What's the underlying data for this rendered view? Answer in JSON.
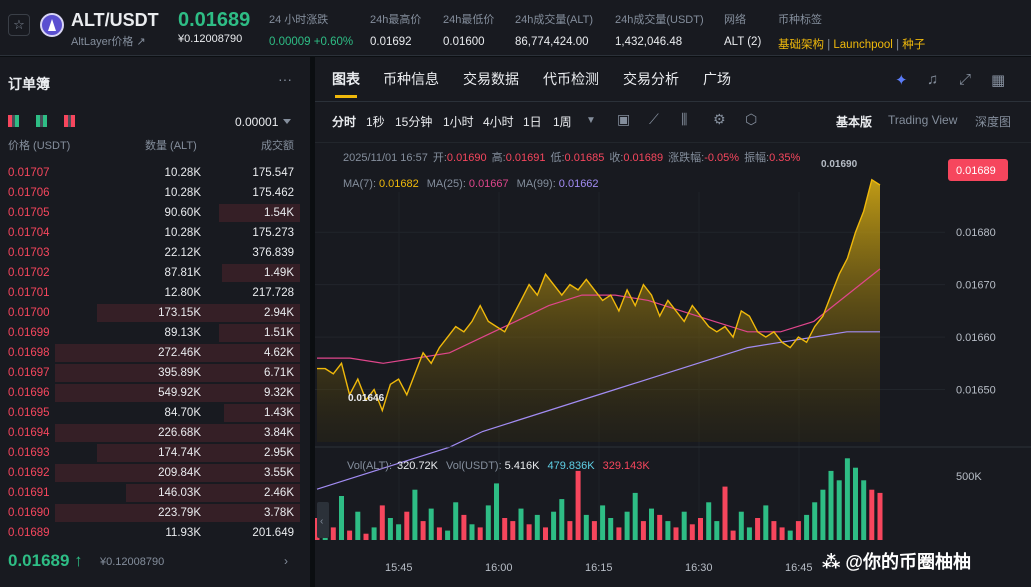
{
  "header": {
    "pair": "ALT/USDT",
    "name": "AltLayer价格 ↗",
    "price": "0.01689",
    "price_usd": "¥0.12008790",
    "stats": [
      {
        "label": "24 小时涨跌",
        "value": "0.00009 +0.60%",
        "color": "#2ebd85"
      },
      {
        "label": "24h最高价",
        "value": "0.01692"
      },
      {
        "label": "24h最低价",
        "value": "0.01600"
      },
      {
        "label": "24h成交量(ALT)",
        "value": "86,774,424.00"
      },
      {
        "label": "24h成交量(USDT)",
        "value": "1,432,046.48"
      },
      {
        "label": "网络",
        "value": "ALT (2)"
      }
    ],
    "tags_label": "币种标签",
    "tags": [
      "基础架构",
      "Launchpool",
      "种子"
    ]
  },
  "orderbook": {
    "title": "订单簿",
    "tick": "0.00001",
    "columns": [
      "价格 (USDT)",
      "数量 (ALT)",
      "成交额"
    ],
    "rows": [
      {
        "price": "0.01707",
        "qty": "10.28K",
        "total": "175.547",
        "depth": 0.0
      },
      {
        "price": "0.01706",
        "qty": "10.28K",
        "total": "175.462",
        "depth": 0.0
      },
      {
        "price": "0.01705",
        "qty": "90.60K",
        "total": "1.54K",
        "depth": 0.33
      },
      {
        "price": "0.01704",
        "qty": "10.28K",
        "total": "175.273",
        "depth": 0.0
      },
      {
        "price": "0.01703",
        "qty": "22.12K",
        "total": "376.839",
        "depth": 0.0
      },
      {
        "price": "0.01702",
        "qty": "87.81K",
        "total": "1.49K",
        "depth": 0.32
      },
      {
        "price": "0.01701",
        "qty": "12.80K",
        "total": "217.728",
        "depth": 0.0
      },
      {
        "price": "0.01700",
        "qty": "173.15K",
        "total": "2.94K",
        "depth": 0.83
      },
      {
        "price": "0.01699",
        "qty": "89.13K",
        "total": "1.51K",
        "depth": 0.33
      },
      {
        "price": "0.01698",
        "qty": "272.46K",
        "total": "4.62K",
        "depth": 1.0
      },
      {
        "price": "0.01697",
        "qty": "395.89K",
        "total": "6.71K",
        "depth": 1.0
      },
      {
        "price": "0.01696",
        "qty": "549.92K",
        "total": "9.32K",
        "depth": 1.0
      },
      {
        "price": "0.01695",
        "qty": "84.70K",
        "total": "1.43K",
        "depth": 0.31
      },
      {
        "price": "0.01694",
        "qty": "226.68K",
        "total": "3.84K",
        "depth": 1.0
      },
      {
        "price": "0.01693",
        "qty": "174.74K",
        "total": "2.95K",
        "depth": 0.83
      },
      {
        "price": "0.01692",
        "qty": "209.84K",
        "total": "3.55K",
        "depth": 1.0
      },
      {
        "price": "0.01691",
        "qty": "146.03K",
        "total": "2.46K",
        "depth": 0.71
      },
      {
        "price": "0.01690",
        "qty": "223.79K",
        "total": "3.78K",
        "depth": 1.0
      },
      {
        "price": "0.01689",
        "qty": "11.93K",
        "total": "201.649",
        "depth": 0.0
      }
    ],
    "last_price": "0.01689 ↑",
    "last_usd": "¥0.12008790"
  },
  "tabs": [
    "图表",
    "币种信息",
    "交易数据",
    "代币检测",
    "交易分析",
    "广场"
  ],
  "toolbar": {
    "intervals": [
      "分时",
      "1秒",
      "15分钟",
      "1小时",
      "4小时",
      "1日",
      "1周"
    ],
    "modes": [
      "基本版",
      "Trading View",
      "深度图"
    ]
  },
  "chart_info": {
    "date": "2025/11/01 16:57",
    "open_label": "开:",
    "open": "0.01690",
    "high_label": "高:",
    "high": "0.01691",
    "low_label": "低:",
    "low": "0.01685",
    "close_label": "收:",
    "close": "0.01689",
    "change_label": "涨跌幅:",
    "change": "-0.05%",
    "amp_label": "振幅:",
    "amp": "0.35%",
    "ma7_label": "MA(7):",
    "ma7": "0.01682",
    "ma25_label": "MA(25):",
    "ma25": "0.01667",
    "ma99_label": "MA(99):",
    "ma99": "0.01662",
    "vol_alt_label": "Vol(ALT):",
    "vol_alt": "320.72K",
    "vol_usdt_label": "Vol(USDT):",
    "vol_usdt": "5.416K",
    "vol_a": "479.836K",
    "vol_b": "329.143K",
    "low_mark": "0.01646",
    "high_mark": "0.01690",
    "current_tag": "0.01689"
  },
  "chart_data": {
    "type": "area",
    "x_ticks": [
      "15:45",
      "16:00",
      "16:15",
      "16:30",
      "16:45"
    ],
    "y_ticks": [
      "0.01680",
      "0.01670",
      "0.01660",
      "0.01650"
    ],
    "vol_tick": "500K",
    "ylim": [
      0.0164,
      0.01693
    ],
    "price": [
      0.01654,
      0.01654,
      0.01653,
      0.01655,
      0.01649,
      0.01652,
      0.01648,
      0.0165,
      0.01646,
      0.01651,
      0.01652,
      0.01649,
      0.01653,
      0.01657,
      0.01655,
      0.01658,
      0.0166,
      0.01662,
      0.01661,
      0.01663,
      0.01666,
      0.01663,
      0.01662,
      0.01661,
      0.01664,
      0.01667,
      0.0167,
      0.01668,
      0.01672,
      0.0167,
      0.01668,
      0.0167,
      0.01669,
      0.01671,
      0.01669,
      0.01667,
      0.01668,
      0.01665,
      0.01669,
      0.01666,
      0.0167,
      0.01668,
      0.01664,
      0.01667,
      0.01665,
      0.01663,
      0.01666,
      0.01664,
      0.01662,
      0.01661,
      0.01662,
      0.0166,
      0.01665,
      0.01664,
      0.01661,
      0.0166,
      0.01661,
      0.01659,
      0.01658,
      0.0166,
      0.01659,
      0.01662,
      0.01664,
      0.01668,
      0.01672,
      0.01675,
      0.0168,
      0.01684,
      0.0169,
      0.01689
    ],
    "ma99": [
      0.01631,
      0.01633,
      0.01635,
      0.01637,
      0.01639,
      0.01642,
      0.01644,
      0.01646,
      0.01648,
      0.0165,
      0.01652,
      0.01654,
      0.01656,
      0.01658,
      0.01659,
      0.0166,
      0.01661,
      0.01661
    ],
    "ma25": [
      0.01656,
      0.01656,
      0.01655,
      0.01656,
      0.01657,
      0.0166,
      0.01663,
      0.01666,
      0.01668,
      0.01668,
      0.01667,
      0.01665,
      0.01663,
      0.01661,
      0.01661,
      0.01663,
      0.01668,
      0.01673
    ],
    "volume": [
      70,
      60,
      40,
      140,
      30,
      90,
      20,
      40,
      110,
      70,
      50,
      90,
      160,
      60,
      100,
      40,
      30,
      120,
      80,
      50,
      40,
      110,
      180,
      70,
      60,
      100,
      50,
      80,
      40,
      90,
      130,
      60,
      220,
      80,
      60,
      110,
      70,
      40,
      90,
      150,
      60,
      100,
      80,
      60,
      40,
      90,
      50,
      70,
      120,
      60,
      170,
      30,
      90,
      40,
      70,
      110,
      60,
      40,
      30,
      60,
      80,
      120,
      160,
      220,
      190,
      260,
      230,
      190,
      160,
      150
    ],
    "vol_up": [
      0,
      1,
      0,
      1,
      0,
      1,
      0,
      1,
      0,
      1,
      1,
      0,
      1,
      0,
      1,
      0,
      1,
      1,
      0,
      1,
      0,
      1,
      1,
      0,
      0,
      1,
      0,
      1,
      0,
      1,
      1,
      0,
      0,
      1,
      0,
      1,
      1,
      0,
      1,
      1,
      0,
      1,
      0,
      1,
      0,
      1,
      0,
      0,
      1,
      1,
      0,
      0,
      1,
      1,
      0,
      1,
      0,
      0,
      1,
      0,
      1,
      1,
      1,
      1,
      1,
      1,
      1,
      1,
      0,
      0
    ]
  }
}
